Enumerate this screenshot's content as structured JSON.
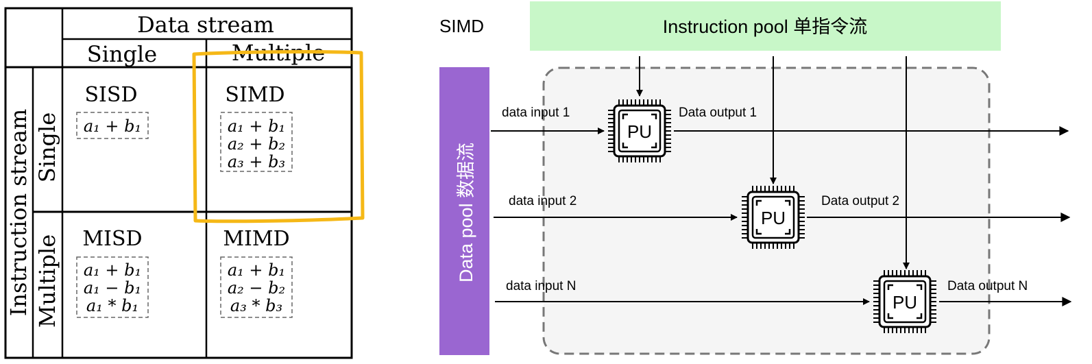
{
  "taxonomy": {
    "header_data_stream": "Data stream",
    "col_single": "Single",
    "col_multiple": "Multiple",
    "header_instruction_stream": "Instruction stream",
    "row_single": "Single",
    "row_multiple": "Multiple",
    "cells": {
      "sisd": {
        "title": "SISD",
        "lines": [
          "a₁ + b₁"
        ]
      },
      "simd": {
        "title": "SIMD",
        "lines": [
          "a₁ + b₁",
          "a₂ + b₂",
          "a₃ + b₃"
        ]
      },
      "misd": {
        "title": "MISD",
        "lines": [
          "a₁ + b₁",
          "a₁ − b₁",
          "a₁ * b₁"
        ]
      },
      "mimd": {
        "title": "MIMD",
        "lines": [
          "a₁ + b₁",
          "a₂ − b₂",
          "a₃ * b₃"
        ]
      }
    },
    "highlight_color": "#F5B817"
  },
  "simd": {
    "title": "SIMD",
    "instruction_pool": "Instruction pool 单指令流",
    "data_pool": "Data pool 数据流",
    "pu_label": "PU",
    "inputs": [
      "data input 1",
      "data input 2",
      "data input N"
    ],
    "outputs": [
      "Data output 1",
      "Data output 2",
      "Data output N"
    ],
    "colors": {
      "instruction_pool_bg": "#C8F7C8",
      "data_pool_bg": "#9A66D1",
      "region_bg": "#F5F5F5",
      "region_border": "#777777"
    }
  }
}
